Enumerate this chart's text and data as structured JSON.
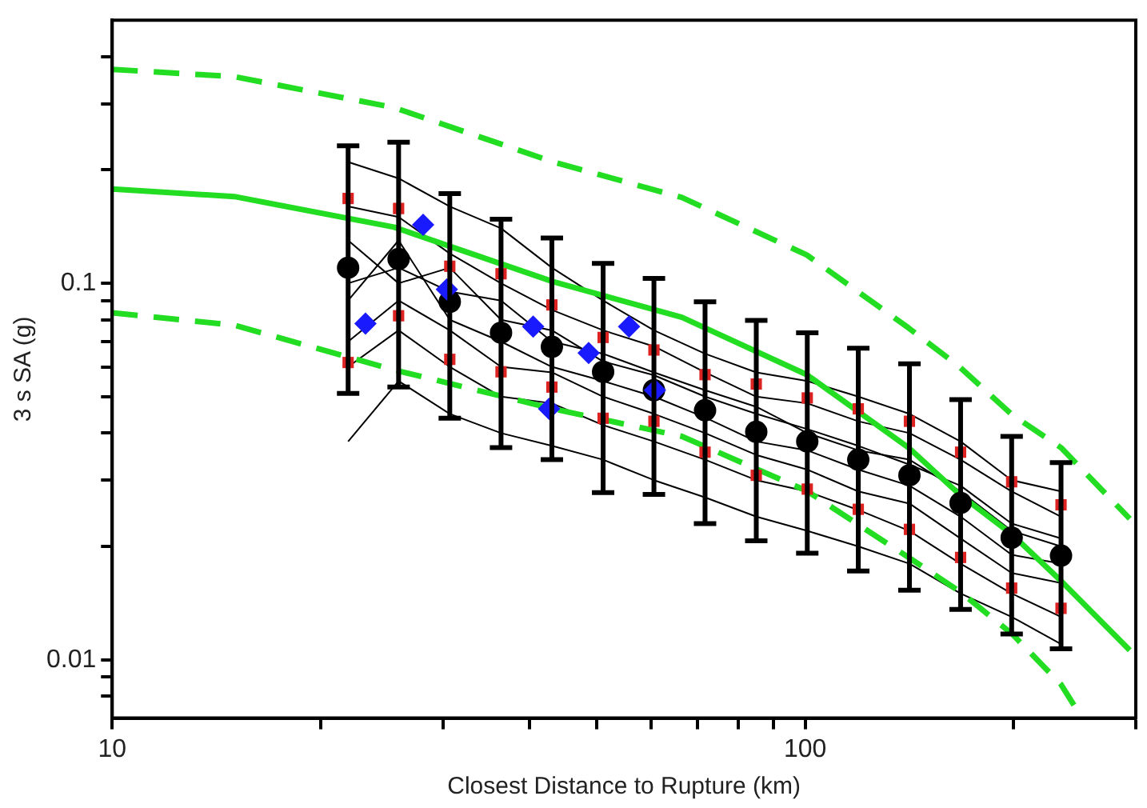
{
  "chart_data": {
    "type": "scatter",
    "xlabel": "Closest Distance to Rupture (km)",
    "ylabel": "3 s SA (g)",
    "log": "xy",
    "xlim": [
      10,
      300
    ],
    "ylim": [
      0.007,
      0.5
    ],
    "xticks": [
      10,
      {
        "value": 20,
        "label": null
      },
      {
        "value": 30,
        "label": null
      },
      {
        "value": 40,
        "label": null
      },
      {
        "value": 50,
        "label": null
      },
      {
        "value": 60,
        "label": null
      },
      {
        "value": 70,
        "label": null
      },
      {
        "value": 80,
        "label": null
      },
      {
        "value": 90,
        "label": null
      },
      100,
      {
        "value": 200,
        "label": null
      },
      {
        "value": 300,
        "label": null
      }
    ],
    "yticks": [
      {
        "value": 0.008,
        "label": null
      },
      {
        "value": 0.009,
        "label": null
      },
      0.01,
      {
        "value": 0.02,
        "label": null
      },
      {
        "value": 0.03,
        "label": null
      },
      {
        "value": 0.04,
        "label": null
      },
      {
        "value": 0.05,
        "label": null
      },
      {
        "value": 0.06,
        "label": null
      },
      {
        "value": 0.07,
        "label": null
      },
      {
        "value": 0.08,
        "label": null
      },
      {
        "value": 0.09,
        "label": null
      },
      0.1,
      {
        "value": 0.2,
        "label": null
      },
      {
        "value": 0.3,
        "label": null
      },
      {
        "value": 0.4,
        "label": null
      }
    ],
    "grid": false,
    "legend": false,
    "x": [
      21.9,
      25.9,
      30.7,
      36.4,
      43.1,
      51.1,
      60.5,
      71.7,
      85,
      100.7,
      119.3,
      141.4,
      167.6,
      198.6,
      234
    ],
    "series": [
      {
        "type": "line",
        "color": "#000000",
        "marker": "none",
        "line_style": "solid",
        "values": [
          0.21,
          0.19,
          0.16,
          0.14,
          0.11,
          0.09,
          0.075,
          0.065,
          0.058,
          0.055,
          0.05,
          0.045,
          0.038,
          0.03,
          0.028
        ]
      },
      {
        "type": "line",
        "color": "#000000",
        "marker": "none",
        "line_style": "solid",
        "values": [
          0.16,
          0.15,
          0.12,
          0.1,
          0.085,
          0.075,
          0.068,
          0.058,
          0.05,
          0.048,
          0.043,
          0.04,
          0.034,
          0.028,
          0.024
        ]
      },
      {
        "type": "line",
        "color": "#000000",
        "marker": "none",
        "line_style": "solid",
        "values": [
          0.13,
          0.1,
          0.11,
          0.08,
          0.075,
          0.062,
          0.057,
          0.05,
          0.045,
          0.041,
          0.037,
          0.033,
          0.029,
          0.023,
          0.021
        ]
      },
      {
        "type": "line",
        "color": "#000000",
        "marker": "none",
        "line_style": "solid",
        "values": [
          0.09,
          0.13,
          0.08,
          0.07,
          0.06,
          0.055,
          0.05,
          0.044,
          0.038,
          0.036,
          0.032,
          0.029,
          0.024,
          0.019,
          0.018
        ]
      },
      {
        "type": "line",
        "color": "#000000",
        "marker": "none",
        "line_style": "solid",
        "values": [
          0.07,
          0.09,
          0.075,
          0.06,
          0.058,
          0.05,
          0.045,
          0.04,
          0.035,
          0.032,
          0.028,
          0.026,
          0.021,
          0.017,
          0.016
        ]
      },
      {
        "type": "line",
        "color": "#000000",
        "marker": "none",
        "line_style": "solid",
        "values": [
          0.06,
          0.075,
          0.06,
          0.05,
          0.048,
          0.042,
          0.038,
          0.034,
          0.03,
          0.028,
          0.025,
          0.022,
          0.018,
          0.015,
          0.013
        ]
      },
      {
        "type": "line",
        "color": "#000000",
        "marker": "none",
        "line_style": "solid",
        "values": [
          0.038,
          0.055,
          0.045,
          0.04,
          0.037,
          0.034,
          0.03,
          0.027,
          0.024,
          0.022,
          0.02,
          0.018,
          0.015,
          0.013,
          0.011
        ]
      },
      {
        "type": "line",
        "color": "#000000",
        "marker": "none",
        "line_style": "solid",
        "values": [
          0.1,
          0.11,
          0.095,
          0.09,
          0.07,
          0.065,
          0.058,
          0.052,
          0.047,
          0.04,
          0.036,
          0.034,
          0.028,
          0.022,
          0.02
        ]
      },
      {
        "type": "line",
        "color": "#22dd22",
        "marker": "none",
        "line_style": "solid",
        "x": [
          10,
          15,
          25.5,
          43.3,
          66.4,
          100.5,
          141,
          167,
          199,
          234,
          294
        ],
        "values": [
          0.178,
          0.17,
          0.141,
          0.101,
          0.0812,
          0.0572,
          0.0366,
          0.0275,
          0.0215,
          0.0162,
          0.0106
        ]
      },
      {
        "type": "line",
        "color": "#22dd22",
        "marker": "none",
        "line_style": "dashed",
        "x": [
          10,
          15,
          25.5,
          43.3,
          66.4,
          100.5,
          141,
          167,
          199,
          234,
          294
        ],
        "values": [
          0.37,
          0.354,
          0.293,
          0.21,
          0.169,
          0.119,
          0.0761,
          0.06,
          0.0447,
          0.0366,
          0.0237
        ]
      },
      {
        "type": "line",
        "color": "#22dd22",
        "marker": "none",
        "line_style": "dashed",
        "x": [
          10,
          15,
          25.5,
          43.3,
          66.4,
          100.5,
          141,
          167,
          199,
          234,
          251
        ],
        "values": [
          0.0835,
          0.0774,
          0.0589,
          0.0464,
          0.0392,
          0.0281,
          0.0187,
          0.0152,
          0.0117,
          0.0086,
          0.007
        ]
      },
      {
        "color": "#000000",
        "marker": "circle",
        "values": [
          0.11,
          0.116,
          0.0893,
          0.0739,
          0.0678,
          0.0582,
          0.052,
          0.046,
          0.0403,
          0.038,
          0.034,
          0.0309,
          0.0261,
          0.0211,
          0.0189
        ],
        "errors": [
          [
            0.051,
            0.232
          ],
          [
            0.053,
            0.237
          ],
          [
            0.0438,
            0.173
          ],
          [
            0.0366,
            0.148
          ],
          [
            0.034,
            0.132
          ],
          [
            0.0278,
            0.113
          ],
          [
            0.0275,
            0.103
          ],
          [
            0.023,
            0.0893
          ],
          [
            0.0207,
            0.0797
          ],
          [
            0.0192,
            0.0739
          ],
          [
            0.0172,
            0.0672
          ],
          [
            0.0153,
            0.0611
          ],
          [
            0.0136,
            0.0491
          ],
          [
            0.0117,
            0.0392
          ],
          [
            0.0107,
            0.0334
          ]
        ]
      },
      {
        "color": "#dd2222",
        "marker": "square",
        "values": [
          0.168,
          0.158,
          0.111,
          0.106,
          0.0876,
          0.0718,
          0.0665,
          0.0572,
          0.054,
          0.0496,
          0.0464,
          0.043,
          0.0356,
          0.0297,
          0.0258
        ]
      },
      {
        "color": "#dd2222",
        "marker": "square",
        "values": [
          0.0616,
          0.082,
          0.0628,
          0.0582,
          0.053,
          0.0438,
          0.043,
          0.0356,
          0.0309,
          0.0284,
          0.0251,
          0.0222,
          0.0187,
          0.0155,
          0.0137
        ]
      },
      {
        "color": "#1a1aff",
        "marker": "diamond",
        "x": [
          23.2,
          28.1,
          30.4,
          40.5,
          42.7,
          48.7,
          55.7,
          60.7
        ],
        "values": [
          0.0782,
          0.143,
          0.0963,
          0.0767,
          0.0464,
          0.0653,
          0.0767,
          0.052
        ]
      }
    ]
  }
}
